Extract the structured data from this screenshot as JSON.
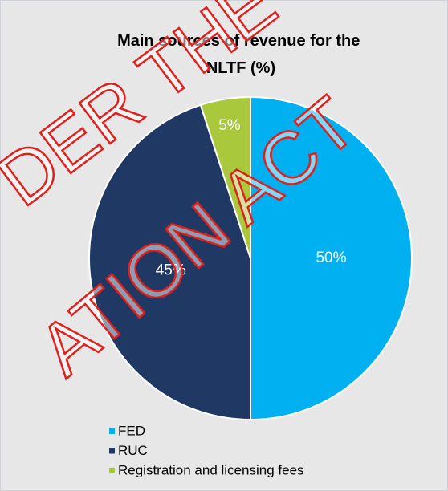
{
  "chart_data": {
    "type": "pie",
    "title": "Main sources of revenue for the NLTF (%)",
    "categories": [
      "FED",
      "RUC",
      "Registration and licensing fees"
    ],
    "values": [
      50,
      45,
      5
    ],
    "value_labels": [
      "50%",
      "45%",
      "5%"
    ],
    "colors": [
      "#00b0f0",
      "#1f3864",
      "#a9c83c"
    ],
    "legend": "bottom",
    "watermark": [
      "DER THE",
      "ATION ACT"
    ]
  }
}
